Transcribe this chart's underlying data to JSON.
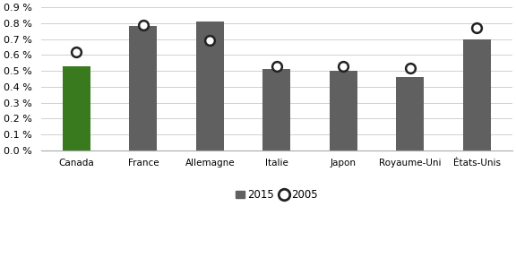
{
  "categories": [
    "Canada",
    "France",
    "Allemagne",
    "Italie",
    "Japon",
    "Royaume-Uni",
    "États-Unis"
  ],
  "values_2015": [
    0.0053,
    0.0078,
    0.0081,
    0.0051,
    0.005,
    0.0046,
    0.007
  ],
  "values_2005": [
    0.0062,
    0.0079,
    0.0069,
    0.0053,
    0.0053,
    0.0052,
    0.0077
  ],
  "bar_color_canada": "#3a7a1e",
  "bar_color_others": "#606060",
  "marker_facecolor": "white",
  "marker_edgecolor": "#222222",
  "ylim": [
    0,
    0.009
  ],
  "yticks": [
    0.0,
    0.001,
    0.002,
    0.003,
    0.004,
    0.005,
    0.006,
    0.007,
    0.008,
    0.009
  ],
  "ytick_labels": [
    "0.0 %",
    "0.1 %",
    "0.2 %",
    "0.3 %",
    "0.4 %",
    "0.5 %",
    "0.6 %",
    "0.7 %",
    "0.8 %",
    "0.9 %"
  ],
  "legend_2015_label": "2015",
  "legend_2005_label": "2005",
  "background_color": "#ffffff",
  "grid_color": "#d0d0d0"
}
